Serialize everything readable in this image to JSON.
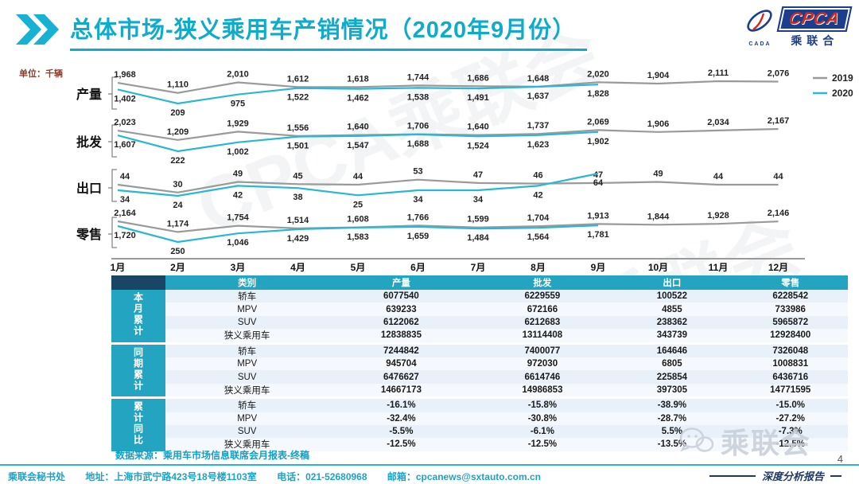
{
  "header": {
    "title": "总体市场-狭义乘用车产销情况（2020年9月份）",
    "logo": {
      "name": "CPCA",
      "subtitle": "乘联合",
      "icon_text": "CADA"
    }
  },
  "unit_label": "单位：千辆",
  "colors": {
    "accent": "#0fabca",
    "series_2019": "#9a9a9a",
    "series_2020": "#29b7d3",
    "table_header_bg": "#23a5c2"
  },
  "legend": [
    {
      "label": "2019"
    },
    {
      "label": "2020"
    }
  ],
  "months": [
    "1月",
    "2月",
    "3月",
    "4月",
    "5月",
    "6月",
    "7月",
    "8月",
    "9月",
    "10月",
    "11月",
    "12月"
  ],
  "chart_data": [
    {
      "type": "line",
      "title": "产量",
      "x": [
        "1月",
        "2月",
        "3月",
        "4月",
        "5月",
        "6月",
        "7月",
        "8月",
        "9月",
        "10月",
        "11月",
        "12月"
      ],
      "series": [
        {
          "name": "2019",
          "values": [
            1968,
            1110,
            2010,
            1612,
            1618,
            1744,
            1686,
            1648,
            2020,
            1904,
            2111,
            2076
          ]
        },
        {
          "name": "2020",
          "values": [
            1402,
            209,
            975,
            1522,
            1462,
            1538,
            1491,
            1637,
            1828
          ]
        }
      ],
      "ylabel": "千辆",
      "grid": false,
      "legend_position": "right"
    },
    {
      "type": "line",
      "title": "批发",
      "x": [
        "1月",
        "2月",
        "3月",
        "4月",
        "5月",
        "6月",
        "7月",
        "8月",
        "9月",
        "10月",
        "11月",
        "12月"
      ],
      "series": [
        {
          "name": "2019",
          "values": [
            2023,
            1209,
            1929,
            1556,
            1640,
            1706,
            1640,
            1737,
            2069,
            1906,
            2034,
            2167
          ]
        },
        {
          "name": "2020",
          "values": [
            1607,
            222,
            1002,
            1501,
            1547,
            1688,
            1524,
            1623,
            1902
          ]
        }
      ],
      "ylabel": "千辆",
      "grid": false
    },
    {
      "type": "line",
      "title": "出口",
      "x": [
        "1月",
        "2月",
        "3月",
        "4月",
        "5月",
        "6月",
        "7月",
        "8月",
        "9月",
        "10月",
        "11月",
        "12月"
      ],
      "series": [
        {
          "name": "2019",
          "values": [
            44,
            30,
            49,
            45,
            44,
            53,
            47,
            46,
            47,
            49,
            44,
            44
          ]
        },
        {
          "name": "2020",
          "values": [
            34,
            24,
            42,
            38,
            25,
            34,
            34,
            42,
            64
          ]
        }
      ],
      "ylabel": "千辆",
      "grid": false
    },
    {
      "type": "line",
      "title": "零售",
      "x": [
        "1月",
        "2月",
        "3月",
        "4月",
        "5月",
        "6月",
        "7月",
        "8月",
        "9月",
        "10月",
        "11月",
        "12月"
      ],
      "series": [
        {
          "name": "2019",
          "values": [
            2164,
            1174,
            1754,
            1514,
            1608,
            1766,
            1599,
            1704,
            1913,
            1844,
            1928,
            2146
          ]
        },
        {
          "name": "2020",
          "values": [
            1720,
            250,
            1046,
            1429,
            1583,
            1659,
            1484,
            1564,
            1781
          ]
        }
      ],
      "ylabel": "千辆",
      "grid": false
    }
  ],
  "table": {
    "headers": [
      "类别",
      "产量",
      "批发",
      "出口",
      "零售"
    ],
    "groups": [
      {
        "label": "本月累计",
        "rows": [
          [
            "轿车",
            "6077540",
            "6229559",
            "100522",
            "6228542"
          ],
          [
            "MPV",
            "639233",
            "672166",
            "4855",
            "733986"
          ],
          [
            "SUV",
            "6122062",
            "6212683",
            "238362",
            "5965872"
          ],
          [
            "狭义乘用车",
            "12838835",
            "13114408",
            "343739",
            "12928400"
          ]
        ]
      },
      {
        "label": "同期累计",
        "rows": [
          [
            "轿车",
            "7244842",
            "7400077",
            "164646",
            "7326048"
          ],
          [
            "MPV",
            "945704",
            "972030",
            "6805",
            "1008831"
          ],
          [
            "SUV",
            "6476627",
            "6614746",
            "225854",
            "6436716"
          ],
          [
            "狭义乘用车",
            "14667173",
            "14986853",
            "397305",
            "14771595"
          ]
        ]
      },
      {
        "label": "累计同比",
        "rows": [
          [
            "轿车",
            "-16.1%",
            "-15.8%",
            "-38.9%",
            "-15.0%"
          ],
          [
            "MPV",
            "-32.4%",
            "-30.8%",
            "-28.7%",
            "-27.2%"
          ],
          [
            "SUV",
            "-5.5%",
            "-6.1%",
            "5.5%",
            "-7.3%"
          ],
          [
            "狭义乘用车",
            "-12.5%",
            "-12.5%",
            "-13.5%",
            "-12.5%"
          ]
        ]
      }
    ]
  },
  "footer": {
    "source": "数据来源：乘用车市场信息联席会月报表-终稿",
    "secretariat": "乘联会秘书处",
    "address": "地址：上海市武宁路423号18号楼1103室",
    "phone": "电话：021-52680968",
    "email": "邮箱：cpcanews@sxtauto.com.cn",
    "report_label": "深度分析报告",
    "page": "4"
  },
  "watermark_text": "CPCA乘联会",
  "corner_watermark": "乘联会"
}
